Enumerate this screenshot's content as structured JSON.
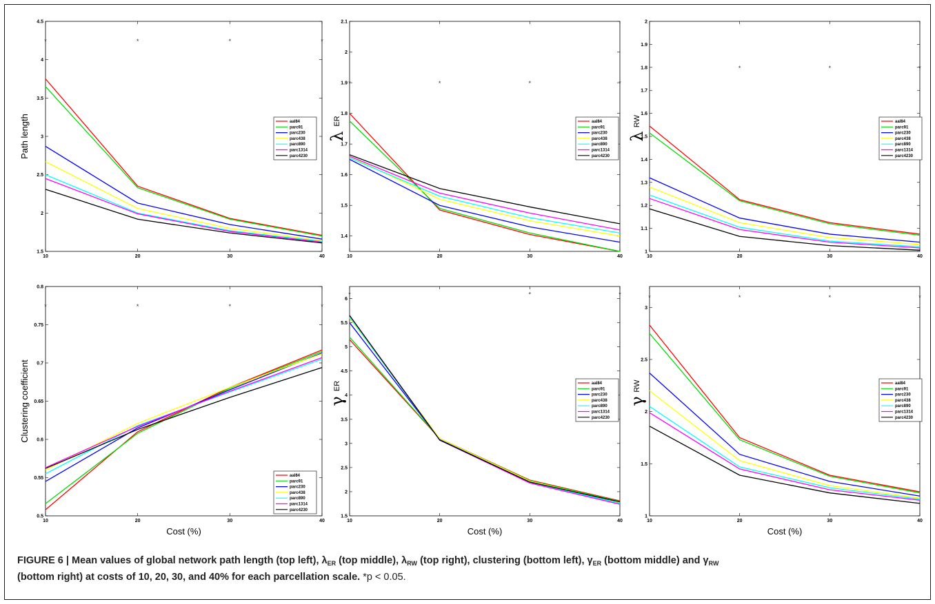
{
  "caption": {
    "figure_label": "FIGURE 6 | Mean values of global network path length (top left), ",
    "lambda": "λ",
    "sub_er": "ER",
    "sub_rw": "RW",
    "gamma": "γ",
    "part2": " (top middle), ",
    "part3": " (top right), clustering (bottom left), ",
    "part4": " (bottom middle) and ",
    "line2": "(bottom right) at costs of 10, 20, 30, and 40% for each parcellation scale.",
    "note": " *p < 0.05."
  },
  "series_colors": [
    "#ff0000",
    "#00dd00",
    "#0000ff",
    "#ffff00",
    "#00ffff",
    "#ff00ff",
    "#000000"
  ],
  "legend_labels": [
    "aal84",
    "parc91",
    "parc230",
    "parc438",
    "parc890",
    "parc1314",
    "parc4230"
  ],
  "chart_data": [
    {
      "type": "line",
      "position": "top-left",
      "ylabel": "Path length",
      "xlabel": "",
      "x": [
        10,
        20,
        30,
        40
      ],
      "xlim": [
        10,
        40
      ],
      "ylim": [
        1.5,
        4.5
      ],
      "yticks": [
        "1.5",
        "2",
        "2.5",
        "3",
        "3.5",
        "4",
        "4.5"
      ],
      "xticks": [
        "10",
        "20",
        "30",
        "40"
      ],
      "significance_x": [
        10,
        20,
        30,
        40
      ],
      "significance_y": 4.25,
      "series": [
        {
          "name": "aal84",
          "values": [
            3.75,
            2.35,
            1.93,
            1.71
          ]
        },
        {
          "name": "parc91",
          "values": [
            3.65,
            2.33,
            1.92,
            1.7
          ]
        },
        {
          "name": "parc230",
          "values": [
            2.87,
            2.13,
            1.85,
            1.66
          ]
        },
        {
          "name": "parc438",
          "values": [
            2.67,
            2.06,
            1.8,
            1.64
          ]
        },
        {
          "name": "parc890",
          "values": [
            2.5,
            2.0,
            1.77,
            1.63
          ]
        },
        {
          "name": "parc1314",
          "values": [
            2.45,
            1.99,
            1.76,
            1.62
          ]
        },
        {
          "name": "parc4230",
          "values": [
            2.31,
            1.92,
            1.74,
            1.61
          ]
        }
      ]
    },
    {
      "type": "line",
      "position": "top-middle",
      "ylabel_symbol": "λ",
      "ylabel_sub": "ER",
      "xlabel": "",
      "x": [
        10,
        20,
        30,
        40
      ],
      "xlim": [
        10,
        40
      ],
      "ylim": [
        1.35,
        2.1
      ],
      "yticks": [
        "1.4",
        "1.5",
        "1.6",
        "1.7",
        "1.8",
        "1.9",
        "2",
        "2.1"
      ],
      "xticks": [
        "10",
        "20",
        "30",
        "40"
      ],
      "significance_x": [
        10,
        20,
        30,
        40
      ],
      "significance_y": 1.9,
      "series": [
        {
          "name": "aal84",
          "values": [
            1.8,
            1.485,
            1.405,
            1.35
          ]
        },
        {
          "name": "parc91",
          "values": [
            1.775,
            1.49,
            1.41,
            1.35
          ]
        },
        {
          "name": "parc230",
          "values": [
            1.65,
            1.5,
            1.43,
            1.38
          ]
        },
        {
          "name": "parc438",
          "values": [
            1.66,
            1.52,
            1.45,
            1.4
          ]
        },
        {
          "name": "parc890",
          "values": [
            1.655,
            1.53,
            1.46,
            1.41
          ]
        },
        {
          "name": "parc1314",
          "values": [
            1.66,
            1.54,
            1.475,
            1.42
          ]
        },
        {
          "name": "parc4230",
          "values": [
            1.665,
            1.555,
            1.495,
            1.44
          ]
        }
      ]
    },
    {
      "type": "line",
      "position": "top-right",
      "ylabel_symbol": "λ",
      "ylabel_sub": "RW",
      "xlabel": "",
      "x": [
        10,
        20,
        30,
        40
      ],
      "xlim": [
        10,
        40
      ],
      "ylim": [
        1.0,
        2.0
      ],
      "yticks": [
        "1",
        "1.1",
        "1.2",
        "1.3",
        "1.4",
        "1.5",
        "1.6",
        "1.7",
        "1.8",
        "1.9",
        "2"
      ],
      "xticks": [
        "10",
        "20",
        "30",
        "40"
      ],
      "significance_x": [
        20,
        30,
        40
      ],
      "significance_y": 1.8,
      "series": [
        {
          "name": "aal84",
          "values": [
            1.545,
            1.225,
            1.125,
            1.075
          ]
        },
        {
          "name": "parc91",
          "values": [
            1.515,
            1.22,
            1.12,
            1.07
          ]
        },
        {
          "name": "parc230",
          "values": [
            1.32,
            1.145,
            1.075,
            1.04
          ]
        },
        {
          "name": "parc438",
          "values": [
            1.28,
            1.125,
            1.06,
            1.03
          ]
        },
        {
          "name": "parc890",
          "values": [
            1.245,
            1.105,
            1.045,
            1.02
          ]
        },
        {
          "name": "parc1314",
          "values": [
            1.23,
            1.095,
            1.04,
            1.015
          ]
        },
        {
          "name": "parc4230",
          "values": [
            1.185,
            1.065,
            1.025,
            1.005
          ]
        }
      ]
    },
    {
      "type": "line",
      "position": "bottom-left",
      "ylabel": "Clustering coefficient",
      "xlabel": "Cost (%)",
      "x": [
        10,
        20,
        30,
        40
      ],
      "xlim": [
        10,
        40
      ],
      "ylim": [
        0.5,
        0.8
      ],
      "yticks": [
        "0.5",
        "0.55",
        "0.6",
        "0.65",
        "0.7",
        "0.75",
        "0.8"
      ],
      "xticks": [
        "10",
        "20",
        "30",
        "40"
      ],
      "significance_x": [
        10,
        20,
        30,
        40
      ],
      "significance_y": 0.775,
      "series": [
        {
          "name": "aal84",
          "values": [
            0.508,
            0.61,
            0.668,
            0.717
          ]
        },
        {
          "name": "parc91",
          "values": [
            0.516,
            0.608,
            0.667,
            0.715
          ]
        },
        {
          "name": "parc230",
          "values": [
            0.545,
            0.615,
            0.665,
            0.713
          ]
        },
        {
          "name": "parc438",
          "values": [
            0.56,
            0.621,
            0.668,
            0.712
          ]
        },
        {
          "name": "parc890",
          "values": [
            0.555,
            0.618,
            0.662,
            0.705
          ]
        },
        {
          "name": "parc1314",
          "values": [
            0.563,
            0.617,
            0.663,
            0.707
          ]
        },
        {
          "name": "parc4230",
          "values": [
            0.562,
            0.613,
            0.655,
            0.694
          ]
        }
      ]
    },
    {
      "type": "line",
      "position": "bottom-middle",
      "ylabel_symbol": "γ",
      "ylabel_sub": "ER",
      "xlabel": "Cost (%)",
      "x": [
        10,
        20,
        30,
        40
      ],
      "xlim": [
        10,
        40
      ],
      "ylim": [
        1.5,
        6.25
      ],
      "yticks": [
        "1.5",
        "2",
        "2.5",
        "3",
        "3.5",
        "4",
        "4.5",
        "5",
        "5.5",
        "6"
      ],
      "xticks": [
        "10",
        "20",
        "30",
        "40"
      ],
      "significance_x": [
        10,
        30,
        40
      ],
      "significance_y": 6.1,
      "series": [
        {
          "name": "aal84",
          "values": [
            5.15,
            3.1,
            2.24,
            1.81
          ]
        },
        {
          "name": "parc91",
          "values": [
            5.2,
            3.1,
            2.23,
            1.8
          ]
        },
        {
          "name": "parc230",
          "values": [
            5.5,
            3.08,
            2.21,
            1.78
          ]
        },
        {
          "name": "parc438",
          "values": [
            5.6,
            3.1,
            2.22,
            1.78
          ]
        },
        {
          "name": "parc890",
          "values": [
            5.62,
            3.07,
            2.19,
            1.76
          ]
        },
        {
          "name": "parc1314",
          "values": [
            5.65,
            3.07,
            2.18,
            1.74
          ]
        },
        {
          "name": "parc4230",
          "values": [
            5.65,
            3.07,
            2.2,
            1.79
          ]
        }
      ]
    },
    {
      "type": "line",
      "position": "bottom-right",
      "ylabel_symbol": "γ",
      "ylabel_sub": "RW",
      "xlabel": "Cost (%)",
      "x": [
        10,
        20,
        30,
        40
      ],
      "xlim": [
        10,
        40
      ],
      "ylim": [
        1.0,
        3.2
      ],
      "yticks": [
        "1",
        "1.5",
        "2",
        "2.5",
        "3"
      ],
      "xticks": [
        "10",
        "20",
        "30",
        "40"
      ],
      "significance_x": [
        10,
        20,
        30,
        40
      ],
      "significance_y": 3.1,
      "series": [
        {
          "name": "aal84",
          "values": [
            2.83,
            1.75,
            1.39,
            1.23
          ]
        },
        {
          "name": "parc91",
          "values": [
            2.75,
            1.73,
            1.38,
            1.22
          ]
        },
        {
          "name": "parc230",
          "values": [
            2.37,
            1.59,
            1.33,
            1.19
          ]
        },
        {
          "name": "parc438",
          "values": [
            2.2,
            1.53,
            1.29,
            1.17
          ]
        },
        {
          "name": "parc890",
          "values": [
            2.05,
            1.47,
            1.27,
            1.16
          ]
        },
        {
          "name": "parc1314",
          "values": [
            1.99,
            1.45,
            1.25,
            1.15
          ]
        },
        {
          "name": "parc4230",
          "values": [
            1.86,
            1.39,
            1.22,
            1.12
          ]
        }
      ]
    }
  ]
}
